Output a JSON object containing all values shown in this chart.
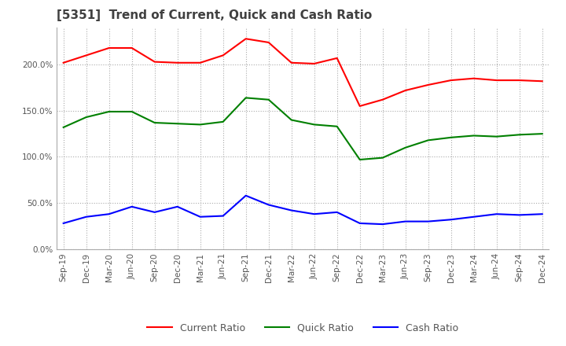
{
  "title": "[5351]  Trend of Current, Quick and Cash Ratio",
  "x_labels": [
    "Sep-19",
    "Dec-19",
    "Mar-20",
    "Jun-20",
    "Sep-20",
    "Dec-20",
    "Mar-21",
    "Jun-21",
    "Sep-21",
    "Dec-21",
    "Mar-22",
    "Jun-22",
    "Sep-22",
    "Dec-22",
    "Mar-23",
    "Jun-23",
    "Sep-23",
    "Dec-23",
    "Mar-24",
    "Jun-24",
    "Sep-24",
    "Dec-24"
  ],
  "current_ratio": [
    202,
    210,
    218,
    218,
    203,
    202,
    202,
    210,
    228,
    224,
    202,
    201,
    207,
    155,
    162,
    172,
    178,
    183,
    185,
    183,
    183,
    182
  ],
  "quick_ratio": [
    132,
    143,
    149,
    149,
    137,
    136,
    135,
    138,
    164,
    162,
    140,
    135,
    133,
    97,
    99,
    110,
    118,
    121,
    123,
    122,
    124,
    125
  ],
  "cash_ratio": [
    28,
    35,
    38,
    46,
    40,
    46,
    35,
    36,
    58,
    48,
    42,
    38,
    40,
    28,
    27,
    30,
    30,
    32,
    35,
    38,
    37,
    38
  ],
  "current_color": "#FF0000",
  "quick_color": "#008000",
  "cash_color": "#0000FF",
  "background_color": "#FFFFFF",
  "grid_color": "#AAAAAA",
  "ylim": [
    0,
    240
  ],
  "yticks": [
    0,
    50,
    100,
    150,
    200
  ],
  "title_fontsize": 11,
  "tick_fontsize": 7.5,
  "legend_fontsize": 9,
  "line_width": 1.5
}
